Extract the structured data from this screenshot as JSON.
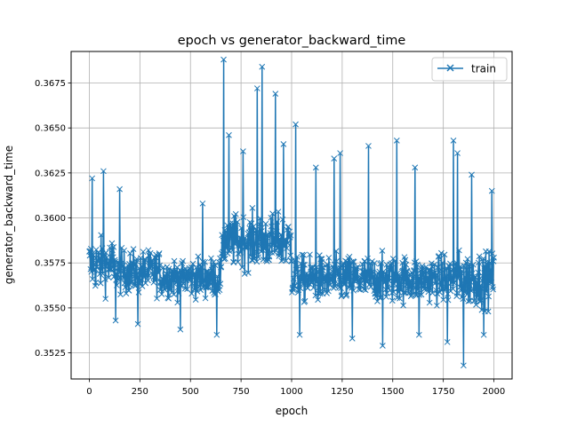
{
  "chart_data": {
    "type": "line",
    "title": "epoch vs generator_backward_time",
    "xlabel": "epoch",
    "ylabel": "generator_backward_time",
    "xlim": [
      -90,
      2090
    ],
    "ylim": [
      0.35105,
      0.36925
    ],
    "xticks": [
      0,
      250,
      500,
      750,
      1000,
      1250,
      1500,
      1750,
      2000
    ],
    "xtick_labels": [
      "0",
      "250",
      "500",
      "750",
      "1000",
      "1250",
      "1500",
      "1750",
      "2000"
    ],
    "yticks": [
      0.3525,
      0.355,
      0.3575,
      0.36,
      0.3625,
      0.365,
      0.3675
    ],
    "ytick_labels": [
      "0.3525",
      "0.3550",
      "0.3575",
      "0.3600",
      "0.3625",
      "0.3650",
      "0.3675"
    ],
    "grid": true,
    "legend_position": "upper right",
    "series": [
      {
        "name": "train",
        "color": "#1f77b4",
        "marker": "x",
        "segments": [
          {
            "x_start": 0,
            "x_end": 120,
            "center": 0.3574,
            "spread": 0.0016
          },
          {
            "x_start": 120,
            "x_end": 350,
            "center": 0.357,
            "spread": 0.0013
          },
          {
            "x_start": 350,
            "x_end": 655,
            "center": 0.3567,
            "spread": 0.0012
          },
          {
            "x_start": 655,
            "x_end": 1000,
            "center": 0.3587,
            "spread": 0.0016
          },
          {
            "x_start": 1000,
            "x_end": 1750,
            "center": 0.3566,
            "spread": 0.0014
          },
          {
            "x_start": 1750,
            "x_end": 2000,
            "center": 0.3566,
            "spread": 0.0016
          }
        ],
        "peaks": [
          {
            "x": 15,
            "y": 0.3622
          },
          {
            "x": 70,
            "y": 0.3626
          },
          {
            "x": 150,
            "y": 0.3616
          },
          {
            "x": 560,
            "y": 0.3608
          },
          {
            "x": 665,
            "y": 0.3688
          },
          {
            "x": 690,
            "y": 0.3646
          },
          {
            "x": 760,
            "y": 0.3637
          },
          {
            "x": 830,
            "y": 0.3672
          },
          {
            "x": 855,
            "y": 0.3684
          },
          {
            "x": 920,
            "y": 0.3669
          },
          {
            "x": 960,
            "y": 0.3641
          },
          {
            "x": 1020,
            "y": 0.3652
          },
          {
            "x": 1120,
            "y": 0.3628
          },
          {
            "x": 1210,
            "y": 0.3633
          },
          {
            "x": 1240,
            "y": 0.3636
          },
          {
            "x": 1380,
            "y": 0.364
          },
          {
            "x": 1520,
            "y": 0.3643
          },
          {
            "x": 1610,
            "y": 0.3628
          },
          {
            "x": 1800,
            "y": 0.3643
          },
          {
            "x": 1820,
            "y": 0.3636
          },
          {
            "x": 1890,
            "y": 0.3624
          },
          {
            "x": 1990,
            "y": 0.3615
          }
        ],
        "troughs": [
          {
            "x": 130,
            "y": 0.3543
          },
          {
            "x": 240,
            "y": 0.3541
          },
          {
            "x": 450,
            "y": 0.3538
          },
          {
            "x": 630,
            "y": 0.3535
          },
          {
            "x": 1040,
            "y": 0.3535
          },
          {
            "x": 1300,
            "y": 0.3533
          },
          {
            "x": 1450,
            "y": 0.3529
          },
          {
            "x": 1630,
            "y": 0.3535
          },
          {
            "x": 1770,
            "y": 0.3531
          },
          {
            "x": 1850,
            "y": 0.3518
          },
          {
            "x": 1950,
            "y": 0.3535
          }
        ]
      }
    ]
  }
}
